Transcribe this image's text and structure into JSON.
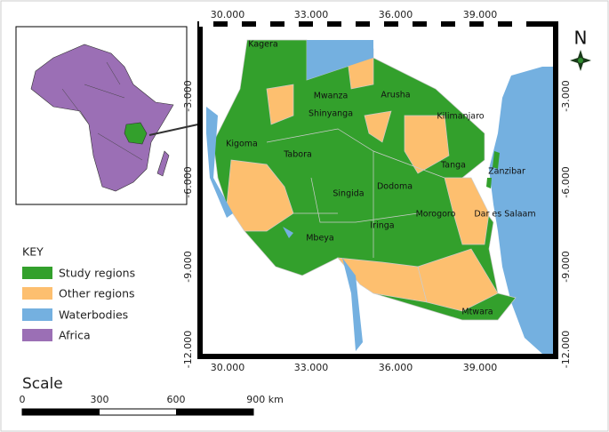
{
  "map": {
    "lon_ticks": [
      "30.000",
      "33.000",
      "36.000",
      "39.000"
    ],
    "lat_ticks": [
      "-3.000",
      "-6.000",
      "-9.000",
      "-12.000"
    ],
    "north": "N",
    "regions": [
      "Kagera",
      "Mwanza",
      "Arusha",
      "Shinyanga",
      "Kilimanjaro",
      "Kigoma",
      "Tabora",
      "Tanga",
      "Zanzibar",
      "Singida",
      "Dodoma",
      "Morogoro",
      "Dar es Salaam",
      "Mbeya",
      "Iringa",
      "Mtwara"
    ]
  },
  "key": {
    "title": "KEY",
    "items": [
      "Study regions",
      "Other regions",
      "Waterbodies",
      "Africa"
    ]
  },
  "scale": {
    "title": "Scale",
    "labels": [
      "0",
      "300",
      "600",
      "900 km"
    ]
  }
}
